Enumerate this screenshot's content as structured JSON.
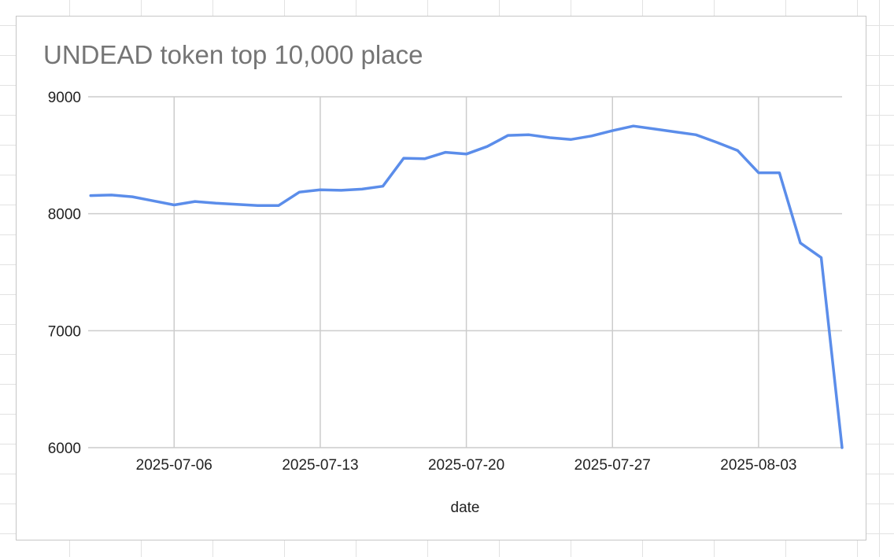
{
  "chart_data": {
    "type": "line",
    "title": "UNDEAD token top 10,000 place",
    "xlabel": "date",
    "ylabel": "",
    "ylim": [
      6000,
      9000
    ],
    "y_ticks": [
      "9000",
      "8000",
      "7000",
      "6000"
    ],
    "x_ticks": [
      "2025-07-06",
      "2025-07-13",
      "2025-07-20",
      "2025-07-27",
      "2025-08-03"
    ],
    "grid": true,
    "legend": "none",
    "line_color": "#5b8dea",
    "series": [
      {
        "x": [
          "2025-07-02",
          "2025-07-03",
          "2025-07-04",
          "2025-07-05",
          "2025-07-06",
          "2025-07-07",
          "2025-07-08",
          "2025-07-09",
          "2025-07-10",
          "2025-07-11",
          "2025-07-12",
          "2025-07-13",
          "2025-07-14",
          "2025-07-15",
          "2025-07-16",
          "2025-07-17",
          "2025-07-18",
          "2025-07-19",
          "2025-07-20",
          "2025-07-21",
          "2025-07-22",
          "2025-07-23",
          "2025-07-24",
          "2025-07-25",
          "2025-07-26",
          "2025-07-27",
          "2025-07-28",
          "2025-07-29",
          "2025-07-30",
          "2025-07-31",
          "2025-08-01",
          "2025-08-02",
          "2025-08-03",
          "2025-08-04",
          "2025-08-05",
          "2025-08-06",
          "2025-08-07"
        ],
        "values": [
          8155,
          8160,
          8145,
          8110,
          8075,
          8105,
          8090,
          8080,
          8070,
          8070,
          8185,
          8205,
          8200,
          8210,
          8235,
          8475,
          8470,
          8525,
          8510,
          8575,
          8670,
          8675,
          8650,
          8635,
          8665,
          8710,
          8750,
          8725,
          8700,
          8675,
          8610,
          8540,
          8350,
          8350,
          7750,
          7625,
          6000
        ]
      }
    ]
  }
}
